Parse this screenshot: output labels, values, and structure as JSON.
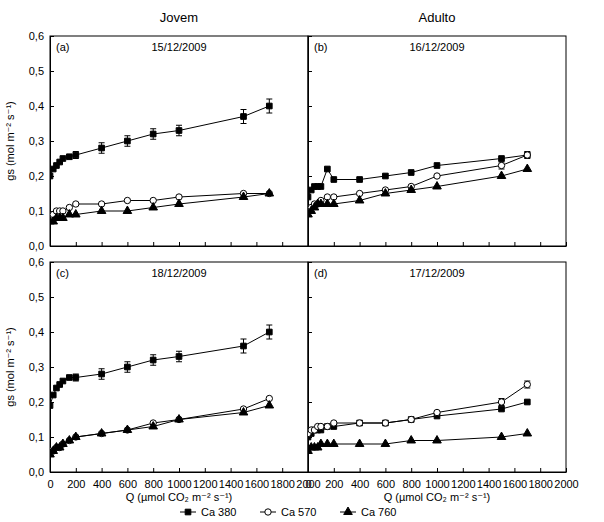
{
  "chart_data": [
    {
      "type": "line",
      "title": "Jovem",
      "subtitle": "15/12/2009",
      "annotations": [
        "(a)"
      ],
      "y_label": "gs (mol m⁻² s⁻¹)",
      "x": [
        0,
        25,
        50,
        75,
        100,
        150,
        200,
        400,
        600,
        800,
        1000,
        1500,
        1700
      ],
      "series": [
        {
          "name": "Ca 380",
          "color": "#000000",
          "marker": "square",
          "line_style": "solid",
          "values": [
            0.2,
            0.22,
            0.23,
            0.24,
            0.25,
            0.255,
            0.26,
            0.28,
            0.3,
            0.32,
            0.33,
            0.37,
            0.4
          ],
          "errors": [
            null,
            null,
            null,
            null,
            null,
            null,
            0.01,
            0.015,
            0.015,
            0.015,
            0.015,
            0.02,
            0.02
          ]
        },
        {
          "name": "Ca 570",
          "color": "#000000",
          "marker": "circle-open",
          "line_style": "solid",
          "values": [
            0.08,
            0.09,
            0.1,
            0.1,
            0.1,
            0.11,
            0.12,
            0.12,
            0.13,
            0.13,
            0.14,
            0.15,
            0.15
          ]
        },
        {
          "name": "Ca 760",
          "color": "#000000",
          "marker": "triangle",
          "line_style": "solid",
          "values": [
            0.07,
            0.07,
            0.08,
            0.08,
            0.08,
            0.09,
            0.09,
            0.1,
            0.1,
            0.11,
            0.12,
            0.14,
            0.15
          ]
        }
      ],
      "xlim": [
        0,
        2000
      ],
      "xticks": [
        0,
        200,
        400,
        600,
        800,
        1000,
        1200,
        1400,
        1600,
        1800,
        2000
      ],
      "ylim": [
        0,
        0.6
      ],
      "yticks": [
        {
          "value": 0,
          "label": "0,0"
        },
        {
          "value": 0.1,
          "label": "0,1"
        },
        {
          "value": 0.2,
          "label": "0,2"
        },
        {
          "value": 0.3,
          "label": "0,3"
        },
        {
          "value": 0.4,
          "label": "0,4"
        },
        {
          "value": 0.5,
          "label": "0,5"
        },
        {
          "value": 0.6,
          "label": "0,6"
        }
      ],
      "tick_labels": "y",
      "grid": false,
      "legend": "bottom"
    },
    {
      "type": "line",
      "title": "Adulto",
      "subtitle": "16/12/2009",
      "annotations": [
        "(b)"
      ],
      "x": [
        0,
        25,
        50,
        75,
        100,
        150,
        200,
        400,
        600,
        800,
        1000,
        1500,
        1700
      ],
      "series": [
        {
          "name": "Ca 380",
          "color": "#000000",
          "marker": "square",
          "line_style": "solid",
          "values": [
            0.14,
            0.16,
            0.17,
            0.17,
            0.17,
            0.22,
            0.19,
            0.19,
            0.2,
            0.21,
            0.23,
            0.25,
            0.26
          ]
        },
        {
          "name": "Ca 570",
          "color": "#000000",
          "marker": "circle-open",
          "line_style": "solid",
          "values": [
            0.1,
            0.11,
            0.12,
            0.12,
            0.13,
            0.14,
            0.14,
            0.15,
            0.16,
            0.17,
            0.2,
            0.23,
            0.26
          ],
          "errors": [
            null,
            null,
            null,
            null,
            null,
            null,
            null,
            null,
            null,
            null,
            null,
            0.01,
            0.01
          ]
        },
        {
          "name": "Ca 760",
          "color": "#000000",
          "marker": "triangle",
          "line_style": "solid",
          "values": [
            0.09,
            0.1,
            0.11,
            0.12,
            0.12,
            0.12,
            0.12,
            0.13,
            0.15,
            0.16,
            0.17,
            0.2,
            0.22
          ]
        }
      ],
      "xlim": [
        0,
        2000
      ],
      "xticks": [
        0,
        200,
        400,
        600,
        800,
        1000,
        1200,
        1400,
        1600,
        1800,
        2000
      ],
      "ylim": [
        0,
        0.6
      ],
      "yticks": [
        0,
        0.1,
        0.2,
        0.3,
        0.4,
        0.5,
        0.6
      ],
      "tick_labels": false,
      "grid": false
    },
    {
      "type": "line",
      "subtitle": "18/12/2009",
      "annotations": [
        "(c)"
      ],
      "y_label": "gs (mol m⁻² s⁻¹)",
      "x_label": "Q (µmol CO₂ m⁻² s⁻¹)",
      "x": [
        0,
        25,
        50,
        75,
        100,
        150,
        200,
        400,
        600,
        800,
        1000,
        1500,
        1700
      ],
      "series": [
        {
          "name": "Ca 380",
          "color": "#000000",
          "marker": "square",
          "line_style": "solid",
          "values": [
            0.19,
            0.22,
            0.24,
            0.25,
            0.26,
            0.27,
            0.27,
            0.28,
            0.3,
            0.32,
            0.33,
            0.36,
            0.4
          ],
          "errors": [
            null,
            null,
            null,
            null,
            null,
            null,
            0.01,
            0.015,
            0.015,
            0.015,
            0.015,
            0.02,
            0.02
          ]
        },
        {
          "name": "Ca 570",
          "color": "#000000",
          "marker": "circle-open",
          "line_style": "solid",
          "values": [
            0.06,
            0.06,
            0.07,
            0.07,
            0.08,
            0.09,
            0.1,
            0.11,
            0.12,
            0.14,
            0.15,
            0.18,
            0.21
          ]
        },
        {
          "name": "Ca 760",
          "color": "#000000",
          "marker": "triangle",
          "line_style": "solid",
          "values": [
            0.05,
            0.06,
            0.07,
            0.07,
            0.08,
            0.09,
            0.1,
            0.11,
            0.12,
            0.13,
            0.15,
            0.17,
            0.19
          ]
        }
      ],
      "xlim": [
        0,
        2000
      ],
      "xticks": [
        0,
        200,
        400,
        600,
        800,
        1000,
        1200,
        1400,
        1600,
        1800,
        2000
      ],
      "ylim": [
        0,
        0.6
      ],
      "yticks": [
        {
          "value": 0,
          "label": "0,0"
        },
        {
          "value": 0.1,
          "label": "0,1"
        },
        {
          "value": 0.2,
          "label": "0,2"
        },
        {
          "value": 0.3,
          "label": "0,3"
        },
        {
          "value": 0.4,
          "label": "0,4"
        },
        {
          "value": 0.5,
          "label": "0,5"
        },
        {
          "value": 0.6,
          "label": "0,6"
        }
      ],
      "tick_labels": true,
      "grid": false
    },
    {
      "type": "line",
      "subtitle": "17/12/2009",
      "annotations": [
        "(d)"
      ],
      "x_label": "Q (µmol CO₂ m⁻² s⁻¹)",
      "x": [
        0,
        25,
        50,
        75,
        100,
        150,
        200,
        400,
        600,
        800,
        1000,
        1500,
        1700
      ],
      "series": [
        {
          "name": "Ca 380",
          "color": "#000000",
          "marker": "square",
          "line_style": "solid",
          "values": [
            0.1,
            0.11,
            0.12,
            0.12,
            0.12,
            0.13,
            0.13,
            0.14,
            0.14,
            0.15,
            0.16,
            0.18,
            0.2
          ]
        },
        {
          "name": "Ca 570",
          "color": "#000000",
          "marker": "circle-open",
          "line_style": "solid",
          "values": [
            0.11,
            0.12,
            0.12,
            0.13,
            0.13,
            0.13,
            0.14,
            0.14,
            0.14,
            0.15,
            0.17,
            0.2,
            0.25
          ],
          "errors": [
            null,
            null,
            null,
            null,
            null,
            null,
            null,
            null,
            null,
            null,
            null,
            0.01,
            0.01
          ]
        },
        {
          "name": "Ca 760",
          "color": "#000000",
          "marker": "triangle",
          "line_style": "solid",
          "values": [
            0.06,
            0.07,
            0.07,
            0.07,
            0.08,
            0.08,
            0.08,
            0.08,
            0.08,
            0.09,
            0.09,
            0.1,
            0.11
          ]
        }
      ],
      "xlim": [
        0,
        2000
      ],
      "xticks": [
        0,
        200,
        400,
        600,
        800,
        1000,
        1200,
        1400,
        1600,
        1800,
        2000
      ],
      "ylim": [
        0,
        0.6
      ],
      "yticks": [
        0,
        0.1,
        0.2,
        0.3,
        0.4,
        0.5,
        0.6
      ],
      "tick_labels": "x",
      "grid": false
    }
  ]
}
